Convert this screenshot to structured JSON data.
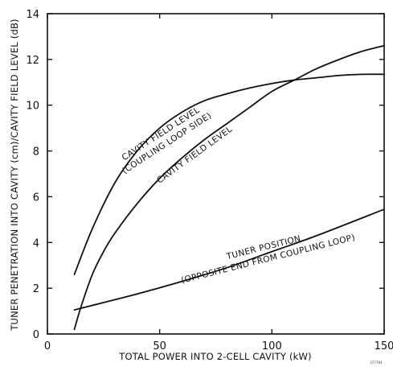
{
  "chart_data": {
    "type": "line",
    "xlabel": "TOTAL POWER INTO 2-CELL CAVITY (kW)",
    "ylabel": "TUNER PENETRATION INTO CAVITY (cm)/CAVITY FIELD LEVEL (dB)",
    "xlim": [
      0,
      150
    ],
    "ylim": [
      0,
      14
    ],
    "xticks": [
      0,
      50,
      100,
      150
    ],
    "yticks": [
      0,
      2,
      4,
      6,
      8,
      10,
      12,
      14
    ],
    "grid": false,
    "series": [
      {
        "name": "CAVITY FIELD LEVEL (COUPLING LOOP SIDE)",
        "points": [
          [
            12,
            2.6
          ],
          [
            20,
            4.6
          ],
          [
            30,
            6.6
          ],
          [
            40,
            8.0
          ],
          [
            50,
            9.0
          ],
          [
            60,
            9.7
          ],
          [
            70,
            10.2
          ],
          [
            80,
            10.5
          ],
          [
            90,
            10.75
          ],
          [
            100,
            10.95
          ],
          [
            110,
            11.1
          ],
          [
            120,
            11.2
          ],
          [
            130,
            11.3
          ],
          [
            140,
            11.35
          ],
          [
            150,
            11.35
          ]
        ]
      },
      {
        "name": "CAVITY FIELD LEVEL",
        "points": [
          [
            12,
            0.2
          ],
          [
            15,
            1.2
          ],
          [
            20,
            2.6
          ],
          [
            25,
            3.6
          ],
          [
            30,
            4.4
          ],
          [
            40,
            5.7
          ],
          [
            50,
            6.8
          ],
          [
            60,
            7.7
          ],
          [
            70,
            8.5
          ],
          [
            80,
            9.2
          ],
          [
            90,
            9.9
          ],
          [
            100,
            10.6
          ],
          [
            110,
            11.1
          ],
          [
            120,
            11.6
          ],
          [
            130,
            12.0
          ],
          [
            140,
            12.35
          ],
          [
            150,
            12.6
          ]
        ]
      },
      {
        "name": "TUNER POSITION (OPPOSITE END FROM COUPLING LOOP)",
        "points": [
          [
            12,
            1.05
          ],
          [
            20,
            1.25
          ],
          [
            40,
            1.75
          ],
          [
            60,
            2.3
          ],
          [
            80,
            2.9
          ],
          [
            100,
            3.6
          ],
          [
            120,
            4.3
          ],
          [
            150,
            5.45
          ]
        ]
      }
    ],
    "annotations": [
      {
        "line1": "CAVITY FIELD LEVEL",
        "line2": "(COUPLING LOOP SIDE)"
      },
      {
        "line1": "CAVITY FIELD LEVEL",
        "line2": ""
      },
      {
        "line1": "TUNER POSITION",
        "line2": "(OPPOSITE END FROM COUPLING LOOP)"
      }
    ]
  },
  "stamp": "377784"
}
